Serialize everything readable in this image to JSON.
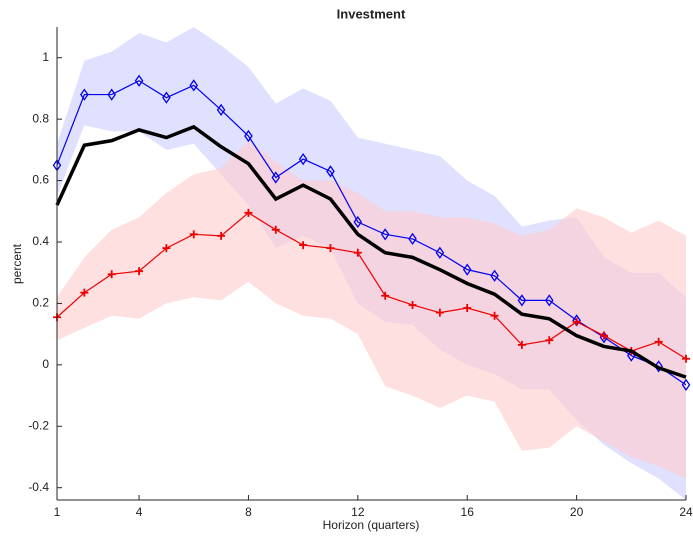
{
  "chart_data": {
    "type": "line",
    "title": "Investment",
    "x_label": "Horizon (quarters)",
    "y_label": "percent",
    "x": [
      1,
      2,
      3,
      4,
      5,
      6,
      7,
      8,
      9,
      10,
      11,
      12,
      13,
      14,
      15,
      16,
      17,
      18,
      19,
      20,
      21,
      22,
      23,
      24
    ],
    "xlim": [
      1,
      24
    ],
    "xticks": [
      1,
      4,
      8,
      12,
      16,
      20,
      24
    ],
    "ylim": [
      -0.44,
      1.1
    ],
    "yticks": [
      -0.4,
      -0.2,
      0,
      0.2,
      0.4,
      0.6,
      0.8,
      1
    ],
    "bands": [
      {
        "color": "#ccccff",
        "upper": [
          0.72,
          0.99,
          1.02,
          1.08,
          1.05,
          1.1,
          1.04,
          0.97,
          0.85,
          0.9,
          0.86,
          0.74,
          0.72,
          0.7,
          0.68,
          0.6,
          0.55,
          0.45,
          0.47,
          0.48,
          0.35,
          0.3,
          0.3,
          0.22
        ],
        "lower": [
          0.55,
          0.78,
          0.76,
          0.76,
          0.7,
          0.72,
          0.62,
          0.52,
          0.38,
          0.42,
          0.38,
          0.2,
          0.14,
          0.13,
          0.05,
          0.0,
          -0.03,
          -0.08,
          -0.08,
          -0.18,
          -0.26,
          -0.32,
          -0.37,
          -0.44
        ]
      },
      {
        "color": "#ffcccc",
        "upper": [
          0.22,
          0.35,
          0.44,
          0.48,
          0.56,
          0.62,
          0.64,
          0.73,
          0.66,
          0.6,
          0.6,
          0.56,
          0.5,
          0.5,
          0.48,
          0.48,
          0.46,
          0.42,
          0.44,
          0.51,
          0.48,
          0.43,
          0.47,
          0.42
        ],
        "lower": [
          0.08,
          0.12,
          0.16,
          0.15,
          0.2,
          0.22,
          0.21,
          0.27,
          0.2,
          0.16,
          0.15,
          0.1,
          -0.07,
          -0.1,
          -0.14,
          -0.1,
          -0.12,
          -0.28,
          -0.27,
          -0.2,
          -0.25,
          -0.3,
          -0.33,
          -0.37
        ]
      }
    ],
    "series": [
      {
        "color": "#0000ee",
        "marker": "diamond",
        "width": 1.2,
        "values": [
          0.65,
          0.88,
          0.88,
          0.925,
          0.87,
          0.91,
          0.83,
          0.745,
          0.61,
          0.67,
          0.63,
          0.465,
          0.425,
          0.41,
          0.365,
          0.31,
          0.29,
          0.21,
          0.21,
          0.145,
          0.09,
          0.03,
          -0.005,
          -0.065
        ]
      },
      {
        "color": "#ee0000",
        "marker": "plus",
        "width": 1.2,
        "values": [
          0.155,
          0.235,
          0.295,
          0.305,
          0.38,
          0.425,
          0.42,
          0.495,
          0.44,
          0.39,
          0.38,
          0.365,
          0.225,
          0.195,
          0.17,
          0.185,
          0.16,
          0.065,
          0.08,
          0.14,
          0.095,
          0.045,
          0.075,
          0.02
        ]
      },
      {
        "color": "#000000",
        "marker": "none",
        "width": 3.5,
        "values": [
          0.52,
          0.715,
          0.73,
          0.765,
          0.74,
          0.775,
          0.71,
          0.655,
          0.54,
          0.585,
          0.54,
          0.425,
          0.365,
          0.35,
          0.31,
          0.265,
          0.23,
          0.165,
          0.15,
          0.095,
          0.06,
          0.045,
          -0.01,
          -0.04
        ]
      }
    ]
  }
}
